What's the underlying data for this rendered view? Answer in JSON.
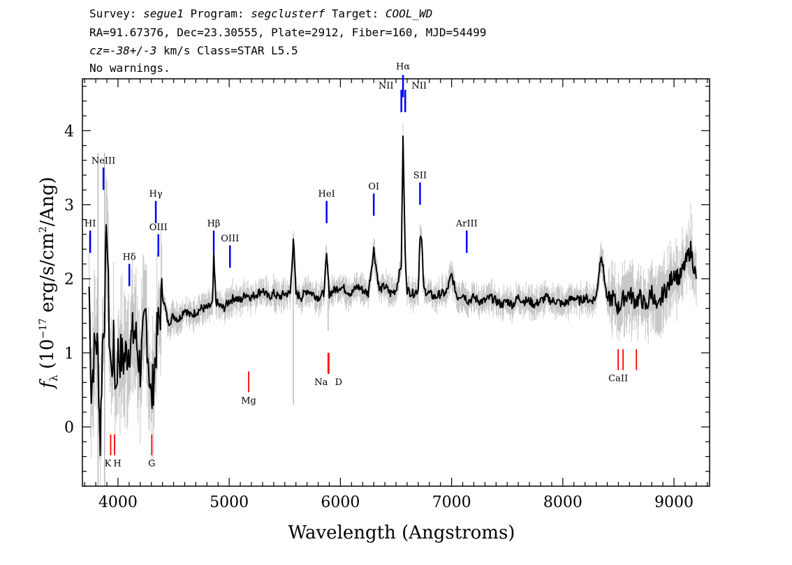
{
  "header": {
    "line1_a": "Survey: ",
    "line1_b": "segue1",
    "line1_c": " Program: ",
    "line1_d": "segclusterf",
    "line1_e": " Target: ",
    "line1_f": "COOL_WD",
    "line2": "RA=91.67376, Dec=23.30555, Plate=2912, Fiber=160, MJD=54499",
    "line3_a": "cz=-38+/-3",
    "line3_b": " km/s Class=STAR L5.5",
    "line4": "No warnings."
  },
  "colors": {
    "flux": "#000000",
    "error": "#c8c8c8",
    "emission": "#0000ff",
    "absorption": "#ff0000",
    "sky": "#999999"
  },
  "chart_data": {
    "type": "line",
    "xlabel": "Wavelength (Angstroms)",
    "ylabel_parts": [
      "f",
      "λ",
      " (10",
      "−17",
      " erg/s/cm",
      "2",
      "/Ang)"
    ],
    "xlim": [
      3680,
      9320
    ],
    "ylim": [
      -0.8,
      4.7
    ],
    "x_ticks": [
      4000,
      5000,
      6000,
      7000,
      8000,
      9000
    ],
    "y_ticks": [
      0,
      1,
      2,
      3,
      4
    ],
    "series": [
      {
        "x": [
          3740,
          3760,
          3780,
          3800,
          3820,
          3840,
          3860,
          3880,
          3900,
          3920,
          3940,
          3960,
          3980,
          4000,
          4050,
          4100,
          4150,
          4200,
          4250,
          4300,
          4350,
          4400,
          4450,
          4500,
          4550,
          4600,
          4650,
          4700,
          4750,
          4800,
          4850,
          4861,
          4880,
          4900,
          4950,
          5000,
          5050,
          5100,
          5150,
          5200,
          5250,
          5300,
          5350,
          5400,
          5450,
          5500,
          5550,
          5577,
          5600,
          5650,
          5700,
          5750,
          5800,
          5850,
          5876,
          5900,
          5950,
          6000,
          6050,
          6100,
          6150,
          6200,
          6250,
          6300,
          6350,
          6400,
          6450,
          6500,
          6548,
          6563,
          6583,
          6600,
          6650,
          6700,
          6716,
          6731,
          6750,
          6800,
          6850,
          6900,
          6950,
          7000,
          7050,
          7100,
          7150,
          7200,
          7250,
          7300,
          7350,
          7400,
          7450,
          7500,
          7550,
          7600,
          7650,
          7700,
          7750,
          7800,
          7850,
          7900,
          7950,
          8000,
          8050,
          8100,
          8150,
          8200,
          8250,
          8300,
          8345,
          8400,
          8450,
          8500,
          8550,
          8600,
          8650,
          8700,
          8750,
          8800,
          8850,
          8900,
          8950,
          9000,
          9050,
          9100,
          9150,
          9200
        ],
        "values": [
          1.9,
          0.5,
          0.9,
          1.2,
          1.0,
          -0.2,
          1.1,
          1.6,
          2.8,
          1.3,
          0.7,
          1.1,
          0.5,
          1.0,
          0.9,
          1.1,
          1.3,
          0.8,
          1.5,
          0.3,
          1.2,
          1.8,
          1.4,
          1.5,
          1.45,
          1.6,
          1.5,
          1.55,
          1.6,
          1.6,
          1.65,
          2.3,
          1.7,
          1.65,
          1.6,
          1.7,
          1.75,
          1.7,
          1.8,
          1.75,
          1.8,
          1.85,
          1.75,
          1.8,
          1.75,
          1.8,
          1.8,
          2.55,
          1.8,
          1.75,
          1.85,
          1.8,
          1.75,
          1.8,
          2.3,
          1.8,
          1.85,
          1.9,
          1.85,
          1.8,
          1.9,
          1.85,
          1.8,
          2.4,
          1.85,
          1.9,
          1.8,
          1.85,
          2.2,
          3.9,
          2.3,
          1.85,
          1.8,
          1.85,
          2.6,
          2.5,
          1.85,
          1.8,
          1.75,
          1.8,
          1.8,
          2.05,
          1.75,
          1.8,
          1.7,
          1.75,
          1.7,
          1.7,
          1.75,
          1.7,
          1.65,
          1.7,
          1.65,
          1.75,
          1.7,
          1.7,
          1.65,
          1.7,
          1.75,
          1.7,
          1.7,
          1.65,
          1.7,
          1.75,
          1.7,
          1.75,
          1.7,
          1.75,
          2.35,
          1.7,
          1.75,
          1.6,
          1.75,
          1.8,
          1.7,
          1.75,
          1.6,
          1.85,
          1.55,
          1.8,
          1.9,
          2.1,
          2.0,
          2.2,
          2.4,
          2.0
        ]
      }
    ],
    "emission_lines": [
      {
        "label": "HI",
        "x": 3750,
        "y": 2.35
      },
      {
        "label": "NeIII",
        "x": 3869,
        "y": 3.2
      },
      {
        "label": "Hγ",
        "x": 4340,
        "y": 2.75
      },
      {
        "label": "Hδ",
        "x": 4102,
        "y": 1.9
      },
      {
        "label": "OIII",
        "x": 4363,
        "y": 2.3
      },
      {
        "label": "Hβ",
        "x": 4861,
        "y": 2.35
      },
      {
        "label": "OIII",
        "x": 5007,
        "y": 2.15
      },
      {
        "label": "HeI",
        "x": 5876,
        "y": 2.75
      },
      {
        "label": "OI",
        "x": 6300,
        "y": 2.85
      },
      {
        "label": "NII",
        "x": 6548,
        "y": 4.25
      },
      {
        "label": "Hα",
        "x": 6563,
        "y": 4.45
      },
      {
        "label": "NII",
        "x": 6583,
        "y": 4.25
      },
      {
        "label": "SII",
        "x": 6716,
        "y": 3.0
      },
      {
        "label": "ArIII",
        "x": 7136,
        "y": 2.35
      }
    ],
    "absorption_lines": [
      {
        "label": "K",
        "x": 3934,
        "y": -0.1
      },
      {
        "label": "H",
        "x": 3969,
        "y": -0.1
      },
      {
        "label": "G",
        "x": 4304,
        "y": -0.1
      },
      {
        "label": "Mg",
        "x": 5175,
        "y": 0.75
      },
      {
        "label": "Na",
        "x": 5890,
        "y": 1.0
      },
      {
        "label": "D",
        "x": 5896,
        "y": 1.0
      },
      {
        "label": "CaII",
        "x": 8498,
        "y": 1.05
      },
      {
        "label": "",
        "x": 8542,
        "y": 1.05
      },
      {
        "label": "",
        "x": 8662,
        "y": 1.05
      }
    ]
  }
}
